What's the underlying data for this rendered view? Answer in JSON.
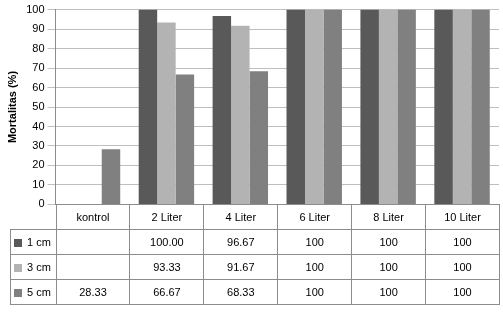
{
  "chart_data": {
    "type": "bar",
    "y_label": "Mortalitas (%)",
    "categories": [
      "kontrol",
      "2 Liter",
      "4 Liter",
      "6 Liter",
      "8 Liter",
      "10 Liter"
    ],
    "series": [
      {
        "name": "1 cm",
        "color": "#595959",
        "values": [
          null,
          100,
          96.67,
          100,
          100,
          100
        ],
        "value_labels": [
          null,
          "100.00",
          "96.67",
          "100",
          "100",
          "100"
        ]
      },
      {
        "name": "3 cm",
        "color": "#b3b3b3",
        "values": [
          null,
          93.33,
          91.67,
          100,
          100,
          100
        ],
        "value_labels": [
          null,
          "93.33",
          "91.67",
          "100",
          "100",
          "100"
        ]
      },
      {
        "name": "5 cm",
        "color": "#808080",
        "values": [
          28.33,
          66.67,
          68.33,
          100,
          100,
          100
        ],
        "value_labels": [
          "28.33",
          "66.67",
          "68.33",
          "100",
          "100",
          "100"
        ]
      }
    ],
    "ylim": [
      0,
      100
    ],
    "yticks": [
      0,
      10,
      20,
      30,
      40,
      50,
      60,
      70,
      80,
      90,
      100
    ],
    "grid": true
  }
}
